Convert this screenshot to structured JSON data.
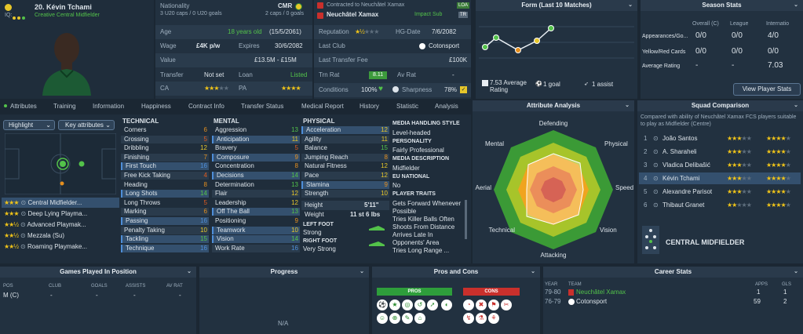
{
  "player": {
    "squad_number_name": "20. Kévin Tchami",
    "role": "Creative Central Midfielder",
    "iq_label": "IQ:",
    "nationality_label": "Nationality",
    "nationality": "CMR",
    "caps_u20": "3 U20 caps / 0 U20 goals",
    "caps": "2 caps / 0 goals",
    "age_label": "Age",
    "age": "18 years old",
    "dob": "(15/5/2061)",
    "wage_label": "Wage",
    "wage": "£4K p/w",
    "expires_label": "Expires",
    "expires": "30/6/2082",
    "value_label": "Value",
    "value": "£13.5M - £15M",
    "transfer_label": "Transfer",
    "transfer": "Not set",
    "loan_label": "Loan",
    "loan": "Listed",
    "ca_label": "CA",
    "pa_label": "PA"
  },
  "contract": {
    "title": "Contracted to Neuchâtel Xamax",
    "club": "Neuchâtel Xamax",
    "status": "Impact Sub",
    "reputation_label": "Reputation",
    "hg_label": "HG-Date",
    "hg_date": "7/6/2082",
    "last_club_label": "Last Club",
    "last_club": "Cotonsport",
    "last_fee_label": "Last Transfer Fee",
    "last_fee": "£100K",
    "trn_label": "Trn Rat",
    "trn_value": "8.11",
    "av_label": "Av Rat",
    "av_value": "-",
    "cond_label": "Conditions",
    "cond_value": "100%",
    "sharp_label": "Sharpness",
    "sharp_value": "78%",
    "badges": [
      "LOA",
      "TR"
    ]
  },
  "form": {
    "title": "Form (Last 10 Matches)",
    "avg_label": "7.53 Average Rating",
    "goals": "1 goal",
    "assists": "1 assist",
    "points": [
      7.3,
      7.6,
      7.2,
      7.5,
      7.9
    ]
  },
  "season": {
    "title": "Season Stats",
    "cols": [
      "Overall (C)",
      "League",
      "Internatio"
    ],
    "rows": [
      {
        "label": "Appearances/Go...",
        "vals": [
          "0/0",
          "0/0",
          "4/0"
        ]
      },
      {
        "label": "Yellow/Red Cards",
        "vals": [
          "0/0",
          "0/0",
          "0/0"
        ]
      },
      {
        "label": "Average Rating",
        "vals": [
          "-",
          "-",
          "7.03"
        ]
      }
    ],
    "button": "View Player Stats"
  },
  "tabs": [
    "Attributes",
    "Training",
    "Information",
    "Happiness",
    "Contract Info",
    "Transfer Status",
    "Medical Report",
    "History",
    "Statistic",
    "Analysis"
  ],
  "controls": {
    "highlight": "Highlight",
    "key_attrs": "Key attributes"
  },
  "positions": [
    {
      "label": "Central Midfielder...",
      "stars": 3
    },
    {
      "label": "Deep Lying Playma...",
      "stars": 3
    },
    {
      "label": "Advanced Playmak...",
      "stars": 2
    },
    {
      "label": "Mezzala (Su)",
      "stars": 2
    },
    {
      "label": "Roaming Playmake...",
      "stars": 2
    }
  ],
  "technical": {
    "title": "TECHNICAL",
    "items": [
      {
        "n": "Corners",
        "v": "6"
      },
      {
        "n": "Crossing",
        "v": "5"
      },
      {
        "n": "Dribbling",
        "v": "12"
      },
      {
        "n": "Finishing",
        "v": "7"
      },
      {
        "n": "First Touch",
        "v": "16"
      },
      {
        "n": "Free Kick Taking",
        "v": "4"
      },
      {
        "n": "Heading",
        "v": "8"
      },
      {
        "n": "Long Shots",
        "v": "14"
      },
      {
        "n": "Long Throws",
        "v": "5"
      },
      {
        "n": "Marking",
        "v": "6"
      },
      {
        "n": "Passing",
        "v": "16"
      },
      {
        "n": "Penalty Taking",
        "v": "10"
      },
      {
        "n": "Tackling",
        "v": "15"
      },
      {
        "n": "Technique",
        "v": "16"
      }
    ]
  },
  "mental": {
    "title": "MENTAL",
    "items": [
      {
        "n": "Aggression",
        "v": "13"
      },
      {
        "n": "Anticipation",
        "v": "11"
      },
      {
        "n": "Bravery",
        "v": "5"
      },
      {
        "n": "Composure",
        "v": "9"
      },
      {
        "n": "Concentration",
        "v": "8"
      },
      {
        "n": "Decisions",
        "v": "14"
      },
      {
        "n": "Determination",
        "v": "13"
      },
      {
        "n": "Flair",
        "v": "12"
      },
      {
        "n": "Leadership",
        "v": "12"
      },
      {
        "n": "Off The Ball",
        "v": "13"
      },
      {
        "n": "Positioning",
        "v": "9"
      },
      {
        "n": "Teamwork",
        "v": "10"
      },
      {
        "n": "Vision",
        "v": "14"
      },
      {
        "n": "Work Rate",
        "v": "16"
      }
    ]
  },
  "physical": {
    "title": "PHYSICAL",
    "items": [
      {
        "n": "Acceleration",
        "v": "12"
      },
      {
        "n": "Agility",
        "v": "11"
      },
      {
        "n": "Balance",
        "v": "15"
      },
      {
        "n": "Jumping Reach",
        "v": "8"
      },
      {
        "n": "Natural Fitness",
        "v": "12"
      },
      {
        "n": "Pace",
        "v": "12"
      },
      {
        "n": "Stamina",
        "v": "9"
      },
      {
        "n": "Strength",
        "v": "10"
      }
    ],
    "height_label": "Height",
    "height": "5'11\"",
    "weight_label": "Weight",
    "weight": "11 st 6 lbs",
    "left_foot_label": "LEFT FOOT",
    "left_foot": "Strong",
    "right_foot_label": "RIGHT FOOT",
    "right_foot": "Very Strong"
  },
  "media": {
    "style_title": "MEDIA HANDLING STYLE",
    "style": "Level-headed",
    "personality_title": "PERSONALITY",
    "personality": "Fairly Professional",
    "desc_title": "MEDIA DESCRIPTION",
    "desc": "Midfielder",
    "eu_title": "EU NATIONAL",
    "eu": "No",
    "traits_title": "PLAYER TRAITS",
    "traits": [
      "Gets Forward Whenever Possible",
      "Tries Killer Balls Often",
      "Shoots From Distance",
      "Arrives Late In Opponents' Area",
      "Tries Long Range ..."
    ]
  },
  "analysis": {
    "title": "Attribute Analysis",
    "axes": [
      "Defending",
      "Physical",
      "Speed",
      "Vision",
      "Attacking",
      "Technical",
      "Aerial",
      "Mental"
    ]
  },
  "squad": {
    "title": "Squad Comparison",
    "desc": "Compared with ability of Neuchâtel Xamax FCS players suitable to play as Midfielder (Centre)",
    "players": [
      {
        "rank": "1",
        "name": "João Santos",
        "ca": 3,
        "pa": 4
      },
      {
        "rank": "2",
        "name": "A. Sharaheli",
        "ca": 3,
        "pa": 4
      },
      {
        "rank": "3",
        "name": "Vladica Delibašić",
        "ca": 3,
        "pa": 4
      },
      {
        "rank": "4",
        "name": "Kévin Tchami",
        "ca": 3,
        "pa": 4
      },
      {
        "rank": "5",
        "name": "Alexandre Parisot",
        "ca": 3,
        "pa": 4
      },
      {
        "rank": "6",
        "name": "Thibaut Granet",
        "ca": 2,
        "pa": 4
      }
    ],
    "role_label": "CENTRAL MIDFIELDER"
  },
  "games": {
    "title": "Games Played In Position",
    "cols": [
      "POS",
      "CLUB",
      "GOALS",
      "ASSISTS",
      "AV RAT"
    ],
    "row": [
      "M (C)",
      "-",
      "-",
      "-",
      "-"
    ]
  },
  "progress": {
    "title": "Progress",
    "na": "N/A"
  },
  "proscons": {
    "title": "Pros and Cons",
    "pros": "PROS",
    "cons": "CONS"
  },
  "career": {
    "title": "Career Stats",
    "cols": [
      "YEAR",
      "TEAM",
      "APPS",
      "GLS"
    ],
    "rows": [
      {
        "year": "79-80",
        "team": "Neuchâtel Xamax",
        "apps": "1",
        "gls": "1"
      },
      {
        "year": "76-79",
        "team": "Cotonsport",
        "apps": "59",
        "gls": "2"
      }
    ]
  },
  "colors": {
    "accent": "#53c24a",
    "bg": "#1b2733",
    "panel": "#223140",
    "header": "#2a3a4b",
    "star": "#f0c419",
    "pros": "#2e9e3b",
    "cons": "#c9302c"
  }
}
